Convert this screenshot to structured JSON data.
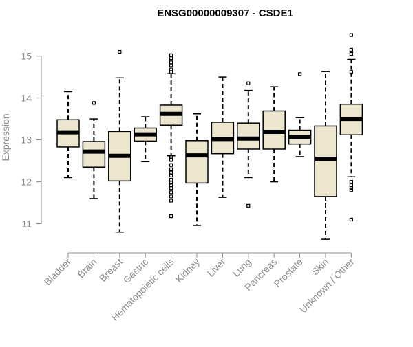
{
  "chart_data": {
    "type": "boxplot",
    "title": "ENSG00000009307 - CSDE1",
    "xlabel": "",
    "ylabel": "Expression",
    "ylim": [
      10.55,
      15.6
    ],
    "yticks": [
      11,
      12,
      13,
      14,
      15
    ],
    "box_fill": "#ede6cf",
    "outline_color": "#000000",
    "axis_color": "#8c8c8c",
    "categories": [
      "Bladder",
      "Brain",
      "Breast",
      "Gastric",
      "Hematopoietic cells",
      "Kidney",
      "Liver",
      "Lung",
      "Pancreas",
      "Prostate",
      "Skin",
      "Unknown / Other"
    ],
    "series": [
      {
        "name": "Bladder",
        "whisker_low": 12.1,
        "q1": 12.83,
        "median": 13.18,
        "q3": 13.48,
        "whisker_high": 14.15,
        "outliers": []
      },
      {
        "name": "Brain",
        "whisker_low": 11.6,
        "q1": 12.35,
        "median": 12.72,
        "q3": 12.96,
        "whisker_high": 13.5,
        "outliers": [
          13.88
        ]
      },
      {
        "name": "Breast",
        "whisker_low": 10.8,
        "q1": 12.02,
        "median": 12.62,
        "q3": 13.2,
        "whisker_high": 14.48,
        "outliers": [
          15.1
        ]
      },
      {
        "name": "Gastric",
        "whisker_low": 12.48,
        "q1": 12.97,
        "median": 13.13,
        "q3": 13.28,
        "whisker_high": 13.55,
        "outliers": []
      },
      {
        "name": "Hematopoietic cells",
        "whisker_low": 12.62,
        "q1": 13.35,
        "median": 13.62,
        "q3": 13.83,
        "whisker_high": 14.58,
        "outliers": [
          15.02,
          14.95,
          14.85,
          14.78,
          14.68,
          14.62,
          12.6,
          12.52,
          12.4,
          12.3,
          12.22,
          12.15,
          12.05,
          11.98,
          11.92,
          11.85,
          11.75,
          11.65,
          11.55,
          11.18
        ]
      },
      {
        "name": "Kidney",
        "whisker_low": 10.96,
        "q1": 11.97,
        "median": 12.63,
        "q3": 12.98,
        "whisker_high": 13.62,
        "outliers": []
      },
      {
        "name": "Liver",
        "whisker_low": 11.63,
        "q1": 12.67,
        "median": 13.02,
        "q3": 13.42,
        "whisker_high": 14.5,
        "outliers": []
      },
      {
        "name": "Lung",
        "whisker_low": 12.1,
        "q1": 12.78,
        "median": 13.03,
        "q3": 13.4,
        "whisker_high": 14.18,
        "outliers": [
          14.35,
          11.43
        ]
      },
      {
        "name": "Pancreas",
        "whisker_low": 12.0,
        "q1": 12.78,
        "median": 13.19,
        "q3": 13.69,
        "whisker_high": 14.27,
        "outliers": []
      },
      {
        "name": "Prostate",
        "whisker_low": 12.6,
        "q1": 12.9,
        "median": 13.06,
        "q3": 13.23,
        "whisker_high": 13.53,
        "outliers": [
          14.57
        ]
      },
      {
        "name": "Skin",
        "whisker_low": 10.63,
        "q1": 11.65,
        "median": 12.55,
        "q3": 13.33,
        "whisker_high": 14.63,
        "outliers": []
      },
      {
        "name": "Unknown / Other",
        "whisker_low": 12.12,
        "q1": 13.12,
        "median": 13.5,
        "q3": 13.85,
        "whisker_high": 14.92,
        "outliers": [
          15.5,
          15.15,
          15.05,
          14.62,
          12.0,
          11.92,
          11.85,
          11.8,
          11.1
        ]
      }
    ]
  }
}
